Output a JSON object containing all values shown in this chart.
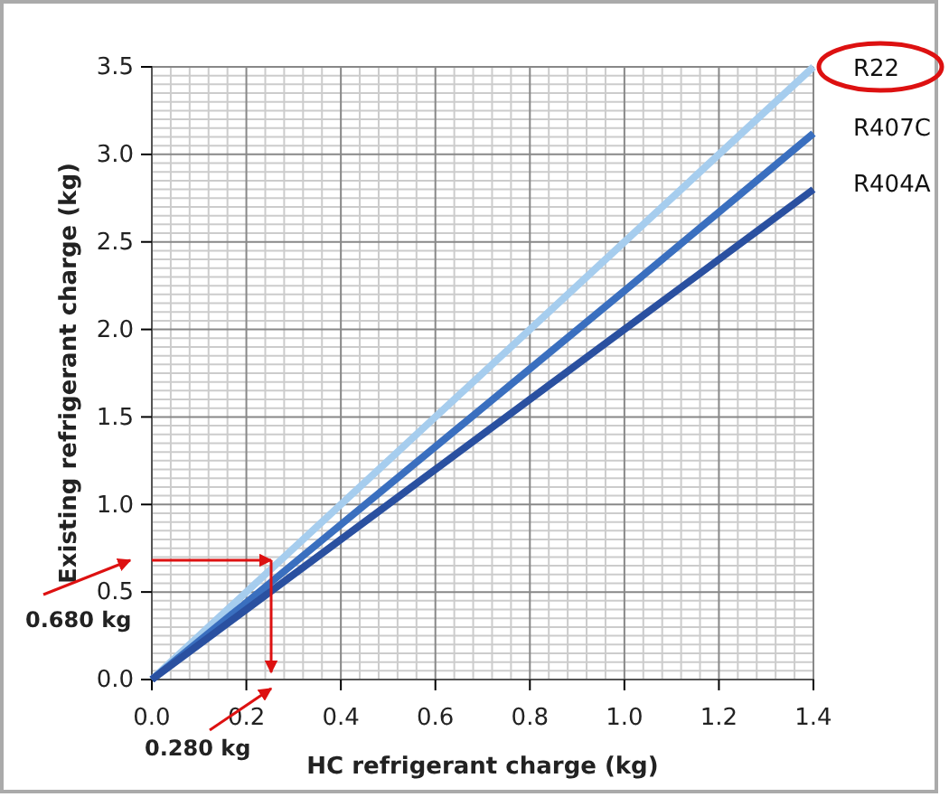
{
  "chart_data": {
    "type": "line",
    "xlabel": "HC refrigerant charge (kg)",
    "ylabel": "Existing refrigerant charge (kg)",
    "xlim": [
      0,
      1.4
    ],
    "ylim": [
      0,
      3.5
    ],
    "xticks": [
      {
        "value": 0,
        "label": "0.0"
      },
      0.2,
      0.4,
      0.6,
      0.8,
      {
        "value": 1,
        "label": "1.0"
      },
      1.2,
      1.4
    ],
    "yticks": [
      {
        "value": 0,
        "label": "0.0"
      },
      0.5,
      {
        "value": 1,
        "label": "1.0"
      },
      1.5,
      {
        "value": 2,
        "label": "2.0"
      },
      2.5,
      {
        "value": 3,
        "label": "3.0"
      },
      3.5
    ],
    "grid": true,
    "marker": "none",
    "line_style": "solid",
    "x": [
      0,
      0.2,
      0.6,
      1.0,
      1.4
    ],
    "series": [
      {
        "name": "R22",
        "color": "#a6cdee",
        "values": [
          0,
          0.5,
          1.5,
          2.5,
          3.5
        ]
      },
      {
        "name": "R407C",
        "color": "#3a6fbf",
        "values": [
          0,
          0.44,
          1.33,
          2.22,
          3.12
        ]
      },
      {
        "name": "R404A",
        "color": "#2a50a0",
        "values": [
          0,
          0.4,
          1.2,
          2.0,
          2.8
        ]
      }
    ],
    "annotations": [
      "0.680 kg",
      "0.280 kg"
    ]
  }
}
